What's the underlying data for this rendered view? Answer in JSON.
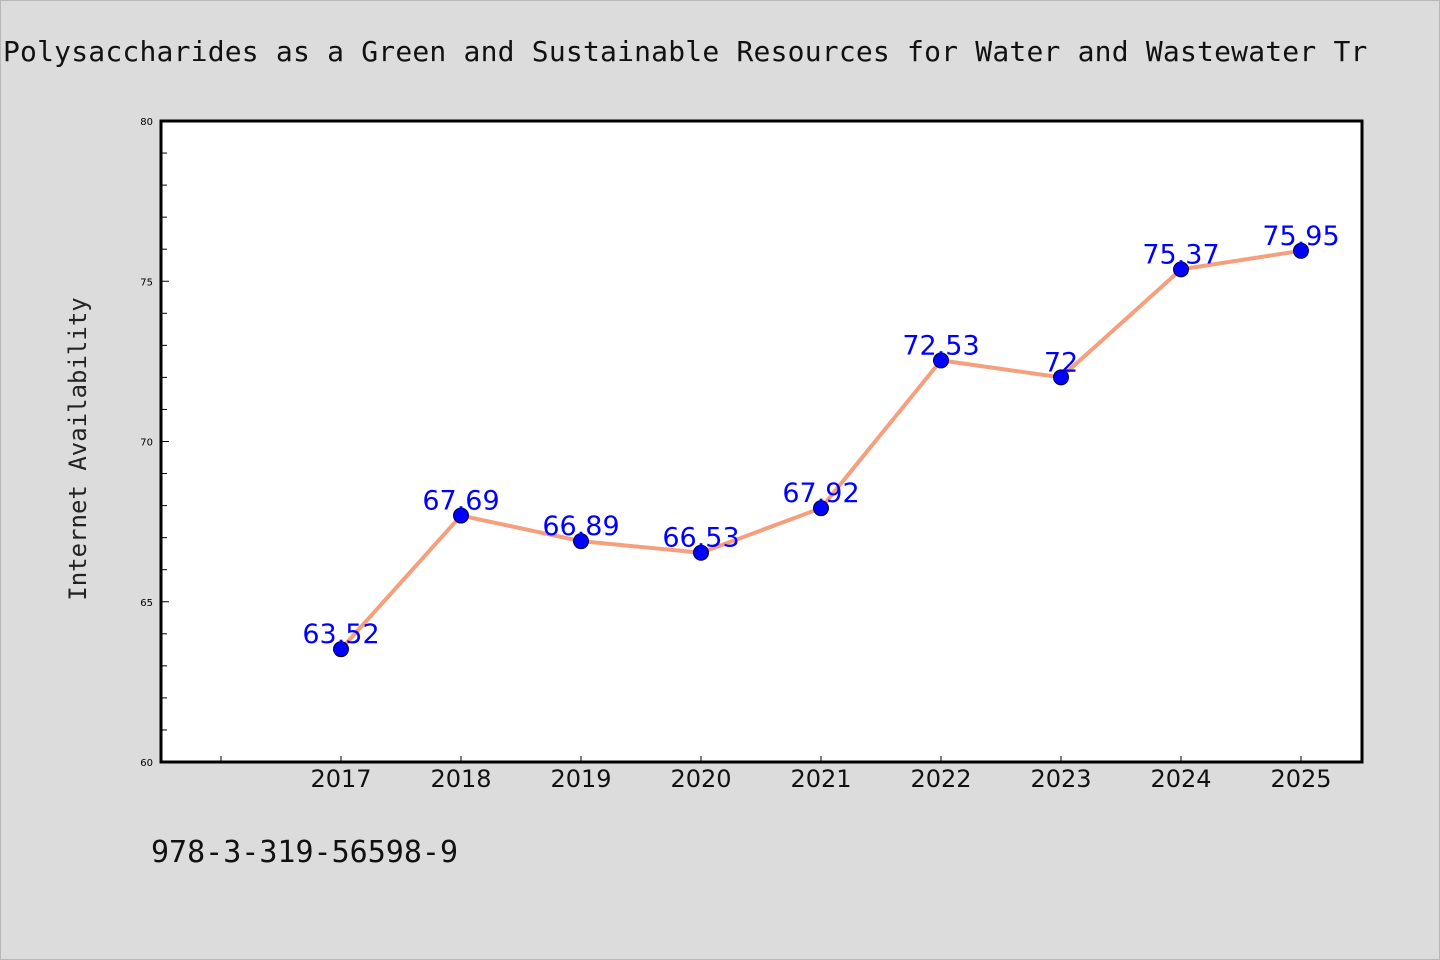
{
  "chart_data": {
    "type": "line",
    "title": "Polysaccharides as a Green and Sustainable Resources for Water and Wastewater Tr",
    "ylabel": "Internet Availability",
    "xlabel": "",
    "categories": [
      "2017",
      "2018",
      "2019",
      "2020",
      "2021",
      "2022",
      "2023",
      "2024",
      "2025"
    ],
    "values": [
      63.52,
      67.69,
      66.89,
      66.53,
      67.92,
      72.53,
      72,
      75.37,
      75.95
    ],
    "data_labels": [
      "63.52",
      "67.69",
      "66.89",
      "66.53",
      "67.92",
      "72.53",
      "72",
      "75.37",
      "75.95"
    ],
    "ylim": [
      60,
      80
    ],
    "y_ticks": [
      "60",
      "65",
      "70",
      "75",
      "80"
    ],
    "grid": false,
    "legend": "none",
    "colors": {
      "line": "#f4a07e",
      "marker": "#0000ff",
      "data_label": "#0000ff",
      "background": "#dcdcdc",
      "plot_area": "#ffffff"
    }
  },
  "footer": {
    "isbn": "978-3-319-56598-9"
  }
}
